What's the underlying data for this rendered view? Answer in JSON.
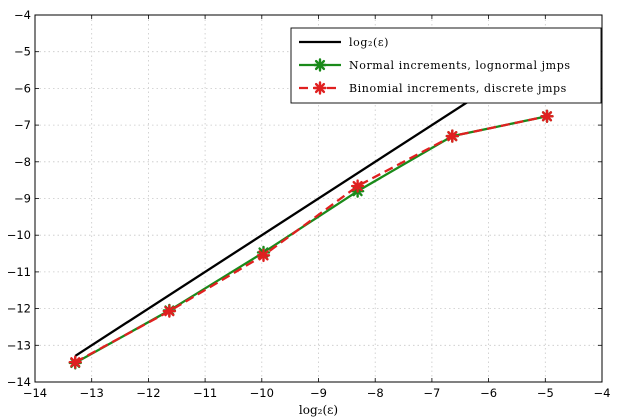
{
  "chart_data": {
    "type": "line",
    "xlabel": "log₂(ε)",
    "ylabel": "",
    "xlim": [
      -14,
      -4
    ],
    "ylim": [
      -14,
      -4
    ],
    "xticks": [
      -14,
      -13,
      -12,
      -11,
      -10,
      -9,
      -8,
      -7,
      -6,
      -5,
      -4
    ],
    "yticks": [
      -14,
      -13,
      -12,
      -11,
      -10,
      -9,
      -8,
      -7,
      -6,
      -5,
      -4
    ],
    "xtick_labels": [
      "−14",
      "−13",
      "−12",
      "−11",
      "−10",
      "−9",
      "−8",
      "−7",
      "−6",
      "−5",
      "−4"
    ],
    "ytick_labels": [
      "−14",
      "−13",
      "−12",
      "−11",
      "−10",
      "−9",
      "−8",
      "−7",
      "−6",
      "−5",
      "−4"
    ],
    "grid": true,
    "legend_position": "top-right",
    "series": [
      {
        "name": "log₂(ε)",
        "color": "#000000",
        "style": "solid",
        "marker": "none",
        "x": [
          -13.29,
          -4.97
        ],
        "y": [
          -13.29,
          -4.97
        ]
      },
      {
        "name": "Normal increments, lognormal jmps",
        "color": "#1a8a1a",
        "style": "solid",
        "marker": "star",
        "x": [
          -13.29,
          -11.63,
          -9.97,
          -8.31,
          -6.64,
          -4.97
        ],
        "y": [
          -13.48,
          -12.05,
          -10.47,
          -8.8,
          -7.3,
          -6.76
        ]
      },
      {
        "name": "Binomial increments, discrete jmps",
        "color": "#e02020",
        "style": "dashed",
        "marker": "star",
        "x": [
          -13.29,
          -11.63,
          -9.97,
          -8.31,
          -6.64,
          -4.97
        ],
        "y": [
          -13.46,
          -12.07,
          -10.55,
          -8.66,
          -7.3,
          -6.76
        ]
      }
    ]
  }
}
